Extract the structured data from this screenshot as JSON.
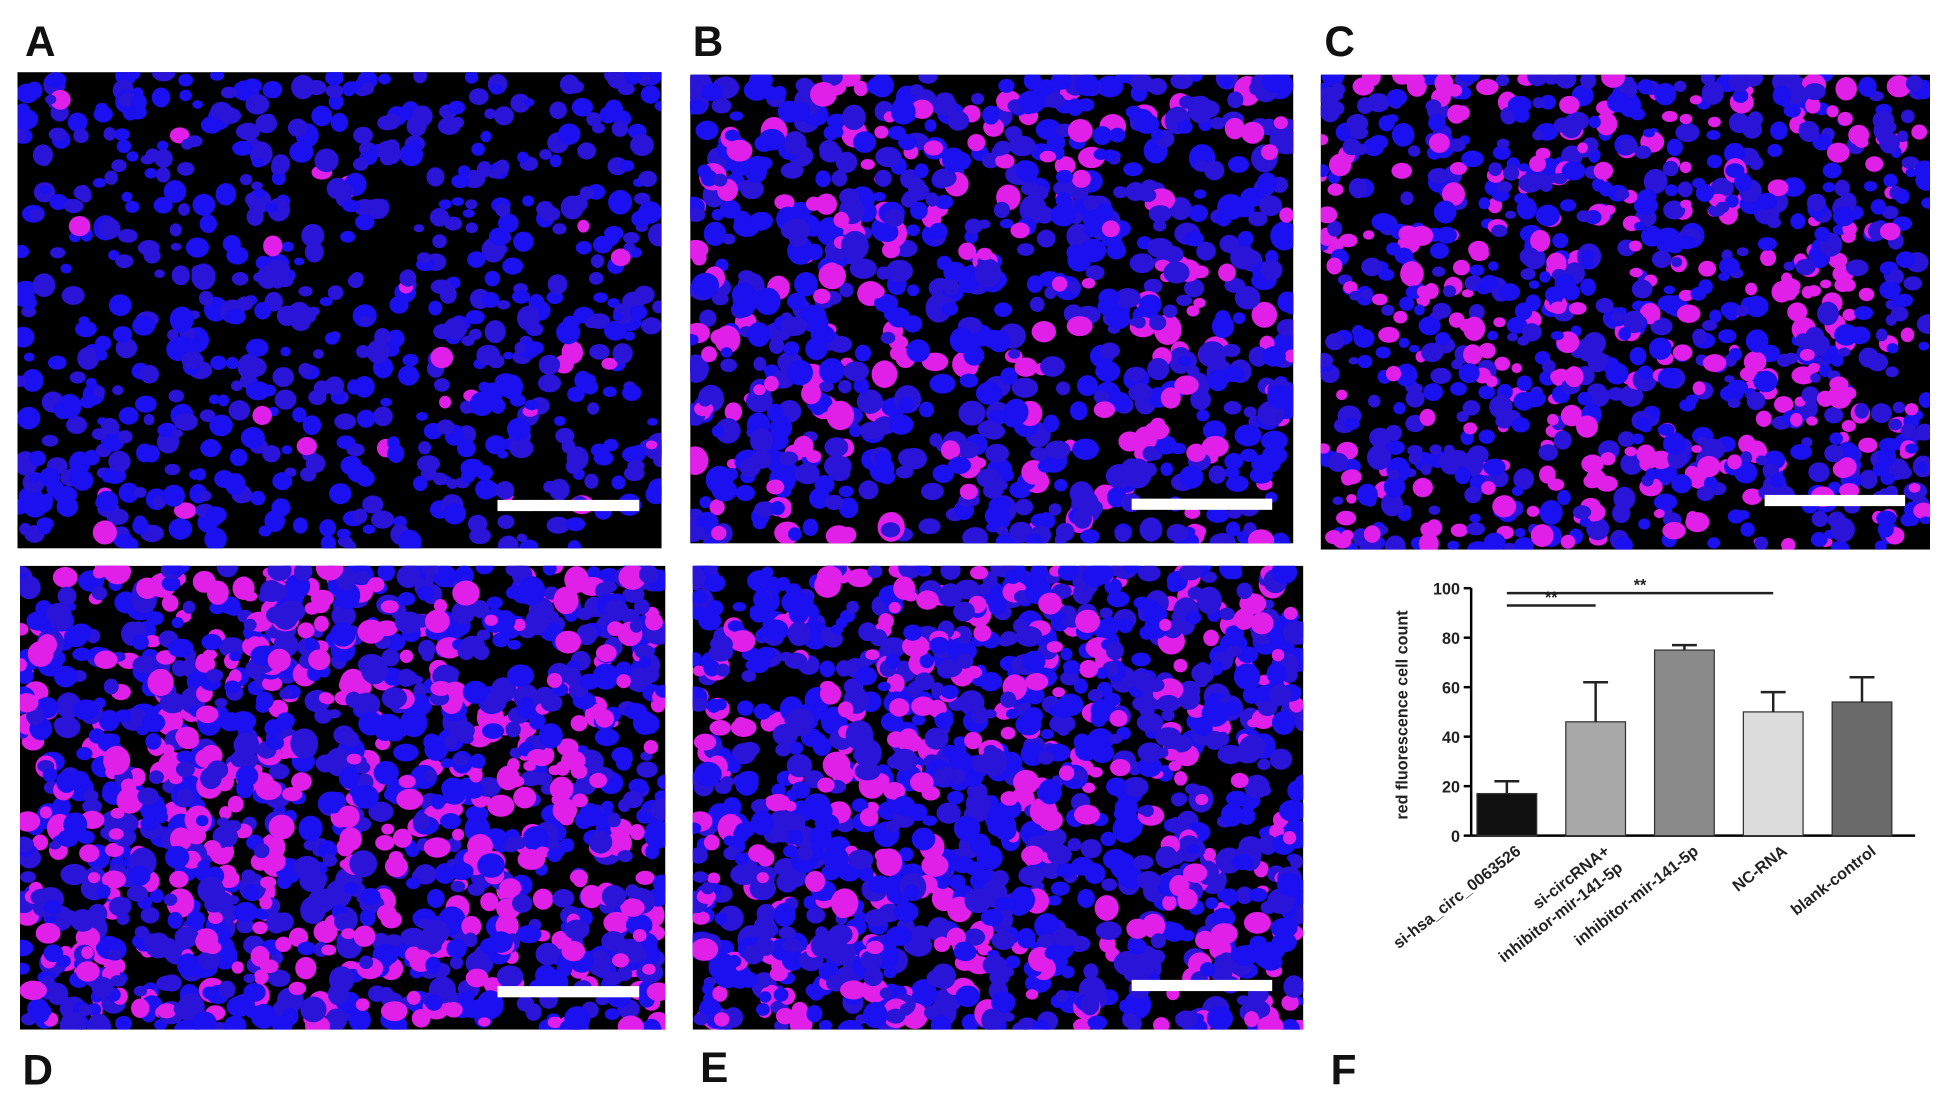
{
  "panels": {
    "labels": [
      "A",
      "B",
      "C",
      "D",
      "E",
      "F"
    ]
  },
  "chart_data": {
    "type": "bar",
    "y_label": "red fluorescence cell count",
    "categories": [
      "si-hsa_circ_0063526",
      [
        "si-circRNA+",
        "inhibitor-mir-141-5p"
      ],
      "inhibitor-mir-141-5p",
      "NC-RNA",
      "blank-control"
    ],
    "values": [
      17,
      46,
      75,
      50,
      54
    ],
    "errors": [
      5,
      16,
      2,
      8,
      10
    ],
    "colors": [
      "#111111",
      "#a8a8a8",
      "#8a8a8a",
      "#dcdcdc",
      "#6a6a6a"
    ],
    "ylim": [
      0,
      100
    ],
    "yticks": [
      0,
      20,
      40,
      60,
      80,
      100
    ],
    "annotations": [
      {
        "text": "**",
        "from": 0,
        "to": 1,
        "y": 93
      },
      {
        "text": "**",
        "from": 0,
        "to": 3,
        "y": 98
      }
    ]
  }
}
